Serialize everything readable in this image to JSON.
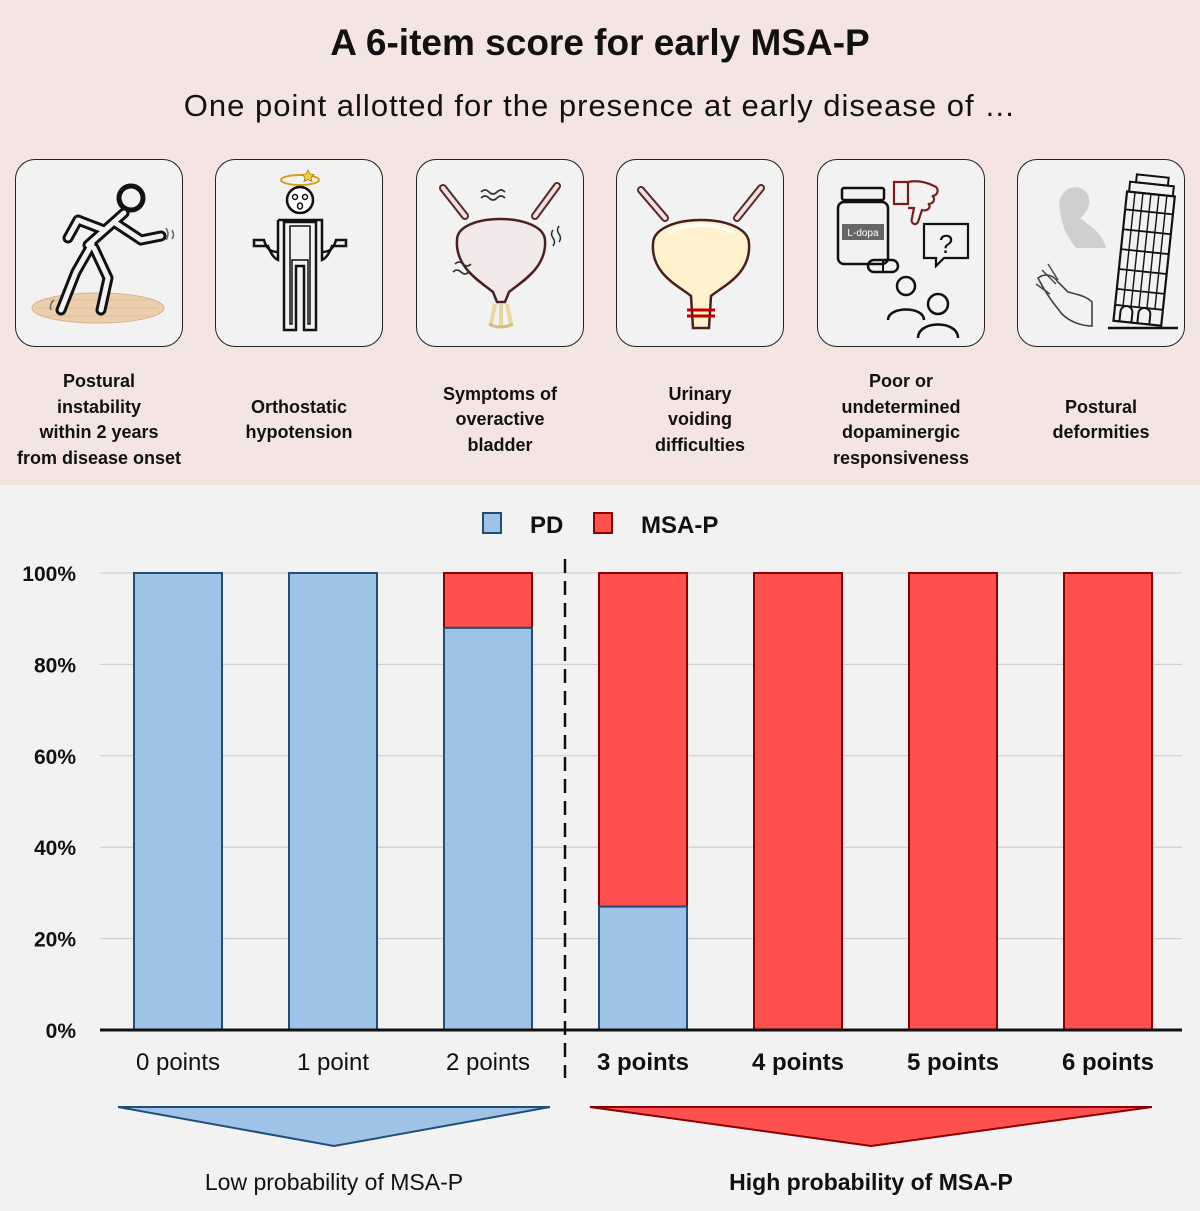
{
  "header": {
    "title": "A 6-item score for early MSA-P",
    "subtitle": "One point allotted for the presence at early disease of …"
  },
  "items": [
    {
      "label": "Postural\ninstability\nwithin 2 years\nfrom disease onset",
      "icon": "falling-person-icon"
    },
    {
      "label": "Orthostatic\nhypotension",
      "icon": "dizzy-person-icon"
    },
    {
      "label": "Symptoms of\noveractive\nbladder",
      "icon": "overactive-bladder-icon"
    },
    {
      "label": "Urinary\nvoiding\ndifficulties",
      "icon": "retention-bladder-icon"
    },
    {
      "label": "Poor or\nundetermined\ndopaminergic\nresponsiveness",
      "icon": "levodopa-response-icon",
      "pill_text": "L-dopa",
      "question_mark": "?"
    },
    {
      "label": "Postural\ndeformities",
      "icon": "leaning-tower-icon"
    }
  ],
  "colors": {
    "pd": "#9fc3e7",
    "pd_border": "#1f4e79",
    "msa": "#ff5050",
    "msa_border": "#8b0000",
    "top_bg": "#f4e5e2",
    "bottom_bg": "#f2f2f2"
  },
  "chart_data": {
    "type": "bar",
    "stacked": true,
    "categories": [
      "0 points",
      "1 point",
      "2 points",
      "3 points",
      "4 points",
      "5 points",
      "6 points"
    ],
    "series": [
      {
        "name": "PD",
        "values": [
          100,
          100,
          88,
          27,
          0,
          0,
          0
        ]
      },
      {
        "name": "MSA-P",
        "values": [
          0,
          0,
          12,
          73,
          100,
          100,
          100
        ]
      }
    ],
    "ylim": [
      0,
      100
    ],
    "yticks": [
      "0%",
      "20%",
      "40%",
      "60%",
      "80%",
      "100%"
    ],
    "legend": [
      "PD",
      "MSA-P"
    ],
    "legend_position": "top-center",
    "grid": true,
    "divider_after_category": 2,
    "bold_from_category": 3,
    "groups": [
      {
        "label": "Low probability of MSA-P",
        "from": 0,
        "to": 2,
        "bold": false
      },
      {
        "label": "High probability of MSA-P",
        "from": 3,
        "to": 6,
        "bold": true
      }
    ]
  }
}
